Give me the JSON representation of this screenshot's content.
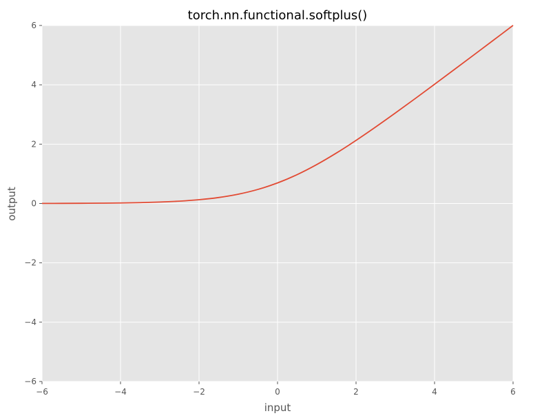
{
  "chart_data": {
    "type": "line",
    "title": "torch.nn.functional.softplus()",
    "xlabel": "input",
    "ylabel": "output",
    "xlim": [
      -6,
      6
    ],
    "ylim": [
      -6,
      6
    ],
    "grid": true,
    "x_ticks": [
      -6,
      -4,
      -2,
      0,
      2,
      4,
      6
    ],
    "y_ticks": [
      -6,
      -4,
      -2,
      0,
      2,
      4,
      6
    ],
    "x_tick_labels": [
      "−6",
      "−4",
      "−2",
      "0",
      "2",
      "4",
      "6"
    ],
    "y_tick_labels": [
      "−6",
      "−4",
      "−2",
      "0",
      "2",
      "4",
      "6"
    ],
    "series": [
      {
        "color": "#e24a33",
        "x": [
          -6,
          -5.5,
          -5,
          -4.5,
          -4,
          -3.5,
          -3,
          -2.5,
          -2,
          -1.5,
          -1,
          -0.5,
          0,
          0.5,
          1,
          1.5,
          2,
          2.5,
          3,
          3.5,
          4,
          4.5,
          5,
          5.5,
          6
        ],
        "y": [
          0.0025,
          0.0041,
          0.0067,
          0.011,
          0.0181,
          0.0298,
          0.0486,
          0.0789,
          0.1269,
          0.2014,
          0.3133,
          0.4741,
          0.6931,
          0.9741,
          1.3133,
          1.7014,
          2.1269,
          2.5789,
          3.0486,
          3.5298,
          4.0181,
          4.511,
          5.0067,
          5.5041,
          6.0025
        ]
      }
    ],
    "background_color": "#e5e5e5",
    "grid_color": "#ffffff",
    "tick_color": "#555555"
  }
}
